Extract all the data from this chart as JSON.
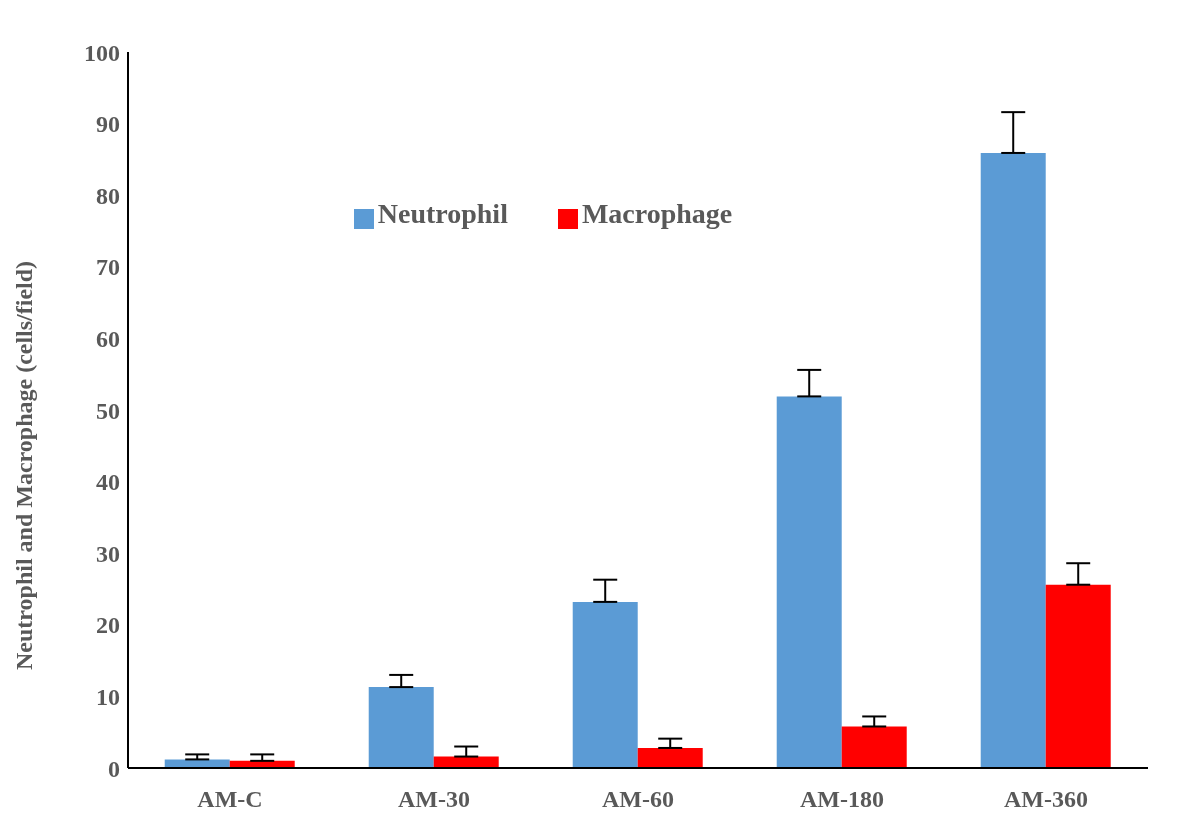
{
  "chart_data": {
    "type": "bar",
    "ylabel": "Neutrophil and Macrophage (cells/field)",
    "categories": [
      "AM-C",
      "AM-30",
      "AM-60",
      "AM-180",
      "AM-360"
    ],
    "series": [
      {
        "name": "Neutrophil",
        "color": "#5b9bd5",
        "values": [
          1.2,
          11.3,
          23.2,
          51.9,
          85.9
        ],
        "errors": [
          [
            1.2,
            1.9
          ],
          [
            11.3,
            13.0
          ],
          [
            23.2,
            26.3
          ],
          [
            51.9,
            55.6
          ],
          [
            85.9,
            91.6
          ]
        ]
      },
      {
        "name": "Macrophage",
        "color": "#ff0000",
        "values": [
          1.0,
          1.6,
          2.8,
          5.8,
          25.6
        ],
        "errors": [
          [
            1.0,
            1.9
          ],
          [
            1.6,
            3.0
          ],
          [
            2.8,
            4.1
          ],
          [
            5.8,
            7.2
          ],
          [
            25.6,
            28.6
          ]
        ]
      }
    ],
    "ylim": [
      0,
      100
    ],
    "yticks": [
      0,
      10,
      20,
      30,
      40,
      50,
      60,
      70,
      80,
      90,
      100
    ],
    "grid": false,
    "legend": "top"
  }
}
